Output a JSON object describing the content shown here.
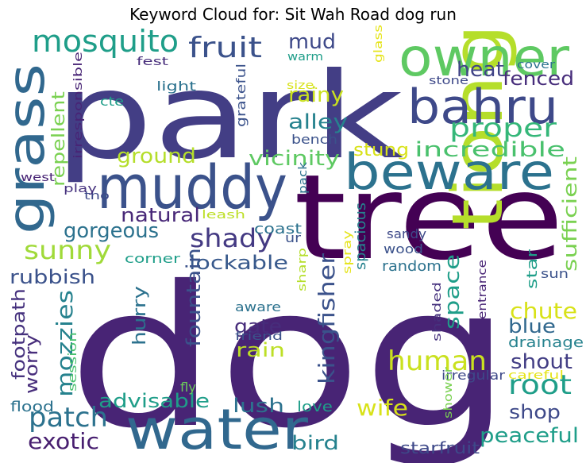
{
  "title": "Keyword Cloud for: Sit Wah Road dog run",
  "words": [
    {
      "text": "dog",
      "color": "#482475"
    },
    {
      "text": "tree",
      "color": "#440154"
    },
    {
      "text": "park",
      "color": "#433e85"
    },
    {
      "text": "tiong",
      "color": "#b5de2b"
    },
    {
      "text": "owner",
      "color": "#5ec962"
    },
    {
      "text": "muddy",
      "color": "#3b528b"
    },
    {
      "text": "bahru",
      "color": "#3e4989"
    },
    {
      "text": "beware",
      "color": "#2c728e"
    },
    {
      "text": "water",
      "color": "#31688e"
    },
    {
      "text": "grass",
      "color": "#31688e"
    },
    {
      "text": "mosquito",
      "color": "#1f9e89"
    },
    {
      "text": "fruit",
      "color": "#3b528b"
    },
    {
      "text": "proper",
      "color": "#35b779"
    },
    {
      "text": "heat",
      "color": "#414487"
    },
    {
      "text": "fenced",
      "color": "#472d7b"
    },
    {
      "text": "mud",
      "color": "#3e4989"
    },
    {
      "text": "rainy",
      "color": "#cae11f"
    },
    {
      "text": "alley",
      "color": "#26828e"
    },
    {
      "text": "shady",
      "color": "#443a83"
    },
    {
      "text": "sunny",
      "color": "#a0da39"
    },
    {
      "text": "patch",
      "color": "#2c728e"
    },
    {
      "text": "repellent",
      "color": "#7ad151"
    },
    {
      "text": "gorgeous",
      "color": "#2c728e"
    },
    {
      "text": "ground",
      "color": "#b5de2b"
    },
    {
      "text": "stung",
      "color": "#d8e219"
    },
    {
      "text": "incredible",
      "color": "#4ac16d"
    },
    {
      "text": "vicinity",
      "color": "#5ec962"
    },
    {
      "text": "natural",
      "color": "#482878"
    },
    {
      "text": "lockable",
      "color": "#38598c"
    },
    {
      "text": "rubbish",
      "color": "#3b528b"
    },
    {
      "text": "footpath",
      "color": "#46327e"
    },
    {
      "text": "mozzies",
      "color": "#26828e"
    },
    {
      "text": "worry",
      "color": "#472d7b"
    },
    {
      "text": "exotic",
      "color": "#481f70"
    },
    {
      "text": "advisable",
      "color": "#1f9e89"
    },
    {
      "text": "lush",
      "color": "#2c728e"
    },
    {
      "text": "bird",
      "color": "#26828e"
    },
    {
      "text": "hurry",
      "color": "#2c728e"
    },
    {
      "text": "fountain",
      "color": "#3b528b"
    },
    {
      "text": "gate",
      "color": "#472d7b"
    },
    {
      "text": "rain",
      "color": "#bddf26"
    },
    {
      "text": "kingfisher",
      "color": "#3b528b"
    },
    {
      "text": "human",
      "color": "#cae11f"
    },
    {
      "text": "space",
      "color": "#1f9e89"
    },
    {
      "text": "sufficient",
      "color": "#7ad151"
    },
    {
      "text": "chute",
      "color": "#d8e219"
    },
    {
      "text": "blue",
      "color": "#31688e"
    },
    {
      "text": "shout",
      "color": "#433e85"
    },
    {
      "text": "root",
      "color": "#1f9e89"
    },
    {
      "text": "shop",
      "color": "#3e4989"
    },
    {
      "text": "peaceful",
      "color": "#1f9e89"
    },
    {
      "text": "wife",
      "color": "#d8e219"
    },
    {
      "text": "drainage",
      "color": "#26828e"
    },
    {
      "text": "starfruit",
      "color": "#3e4989"
    },
    {
      "text": "spacious",
      "color": "#26828e"
    },
    {
      "text": "random",
      "color": "#2c728e"
    },
    {
      "text": "entrance",
      "color": "#482475"
    },
    {
      "text": "star",
      "color": "#1f9e89"
    },
    {
      "text": "sun",
      "color": "#3b528b"
    },
    {
      "text": "shaded",
      "color": "#46327e"
    },
    {
      "text": "irregular",
      "color": "#3e4989"
    },
    {
      "text": "careful",
      "color": "#e5e419"
    },
    {
      "text": "shower",
      "color": "#7ad151"
    },
    {
      "text": "love",
      "color": "#1f9e89"
    },
    {
      "text": "flood",
      "color": "#2c728e"
    },
    {
      "text": "fly",
      "color": "#6ccd5a"
    },
    {
      "text": "session",
      "color": "#48c16e"
    },
    {
      "text": "friend",
      "color": "#3b528b"
    },
    {
      "text": "aware",
      "color": "#2c728e"
    },
    {
      "text": "sharp",
      "color": "#b5de2b"
    },
    {
      "text": "spray",
      "color": "#e5e419"
    },
    {
      "text": "wood",
      "color": "#3b528b"
    },
    {
      "text": "sandy",
      "color": "#3e4989"
    },
    {
      "text": "ur",
      "color": "#3b528b"
    },
    {
      "text": "coast",
      "color": "#2c728e"
    },
    {
      "text": "pack",
      "color": "#2c728e"
    },
    {
      "text": "corner",
      "color": "#1f9e89"
    },
    {
      "text": "leash",
      "color": "#bddf26"
    },
    {
      "text": "tho",
      "color": "#3e4989"
    },
    {
      "text": "play",
      "color": "#46327e"
    },
    {
      "text": "west",
      "color": "#482475"
    },
    {
      "text": "irresponsible",
      "color": "#482475"
    },
    {
      "text": "cte",
      "color": "#1f9e89"
    },
    {
      "text": "light",
      "color": "#2c728e"
    },
    {
      "text": "fest",
      "color": "#472d7b"
    },
    {
      "text": "warm",
      "color": "#1f9e89"
    },
    {
      "text": "grateful",
      "color": "#3b528b"
    },
    {
      "text": "size.",
      "color": "#d8e219"
    },
    {
      "text": "bench",
      "color": "#3b528b"
    },
    {
      "text": "glass",
      "color": "#e5e419"
    },
    {
      "text": "cover",
      "color": "#2c728e"
    },
    {
      "text": "stone",
      "color": "#3e4989"
    }
  ]
}
